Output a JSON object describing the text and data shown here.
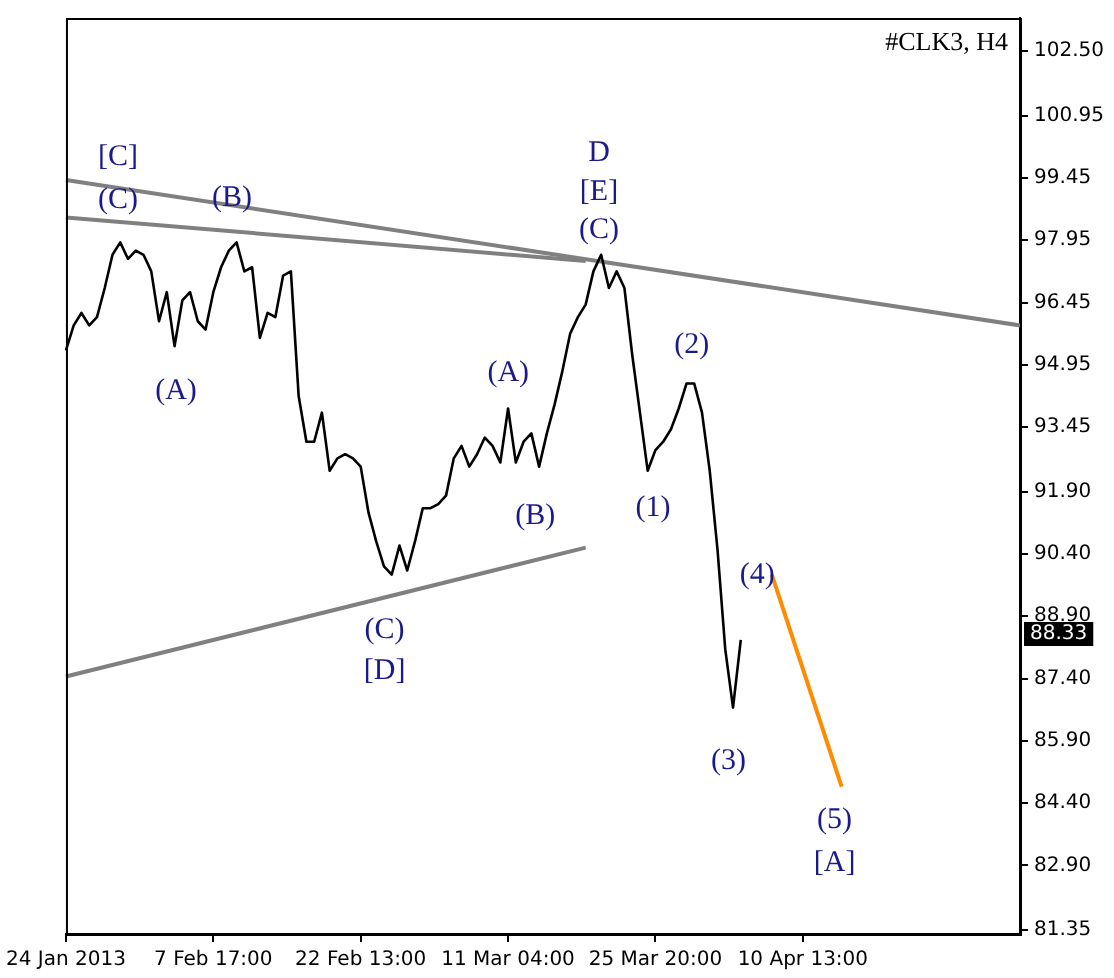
{
  "chart_data": {
    "type": "line",
    "title": "#CLK3, H4",
    "categories": [
      "24 Jan 2013",
      null,
      null,
      null,
      null,
      null,
      null,
      null,
      null,
      null,
      null,
      null,
      null,
      null,
      null,
      null,
      null,
      null,
      null,
      "7 Feb 17:00",
      null,
      null,
      null,
      null,
      null,
      null,
      null,
      null,
      null,
      null,
      null,
      null,
      null,
      null,
      null,
      null,
      null,
      null,
      "22 Feb 13:00",
      null,
      null,
      null,
      null,
      null,
      null,
      null,
      null,
      null,
      null,
      null,
      null,
      null,
      null,
      null,
      null,
      null,
      null,
      "11 Mar 04:00",
      null,
      null,
      null,
      null,
      null,
      null,
      null,
      null,
      null,
      null,
      null,
      null,
      null,
      null,
      null,
      null,
      null,
      null,
      "25 Mar 20:00",
      null,
      null,
      null,
      null,
      null,
      null,
      null,
      null,
      null,
      null,
      null,
      null,
      null,
      null,
      null,
      null,
      null,
      null,
      "10 Apr 13:00",
      null,
      null,
      null,
      null,
      null,
      null,
      null,
      null,
      null,
      null,
      null,
      null,
      null,
      null,
      null,
      null,
      null,
      null,
      null,
      null,
      null,
      null,
      null,
      null,
      null,
      null,
      null,
      null
    ],
    "series": [
      {
        "color": "#000000",
        "values": [
          95.3,
          95.9,
          96.2,
          95.9,
          96.1,
          96.8,
          97.6,
          97.9,
          97.5,
          97.7,
          97.6,
          97.2,
          96.0,
          96.7,
          95.4,
          96.5,
          96.7,
          96.0,
          95.8,
          96.7,
          97.3,
          97.7,
          97.9,
          97.2,
          97.3,
          95.6,
          96.2,
          96.1,
          97.1,
          97.2,
          94.2,
          93.1,
          93.1,
          93.8,
          92.4,
          92.7,
          92.8,
          92.7,
          92.5,
          91.4,
          90.7,
          90.1,
          89.9,
          90.6,
          90.0,
          90.7,
          91.5,
          91.5,
          91.6,
          91.8,
          92.7,
          93.0,
          92.5,
          92.8,
          93.2,
          93.0,
          92.6,
          93.9,
          92.6,
          93.1,
          93.3,
          92.5,
          93.3,
          94.0,
          94.8,
          95.7,
          96.1,
          96.4,
          97.2,
          97.6,
          96.8,
          97.2,
          96.8,
          95.2,
          93.8,
          92.4,
          92.9,
          93.1,
          93.4,
          93.9,
          94.5,
          94.5,
          93.8,
          92.4,
          90.5,
          88.1,
          86.7,
          88.33,
          null,
          null,
          null,
          null,
          null,
          null,
          null,
          null,
          null,
          null,
          null,
          null,
          null,
          null,
          null,
          null,
          null,
          null,
          null,
          null,
          null,
          null,
          null,
          null,
          null,
          null,
          null,
          null,
          null,
          null,
          null,
          null,
          null,
          null,
          null,
          null
        ]
      },
      {
        "color": "#808080",
        "values": [
          99.4,
          null,
          null,
          null,
          null,
          null,
          null,
          null,
          null,
          null,
          null,
          null,
          null,
          null,
          null,
          null,
          null,
          null,
          null,
          null,
          null,
          null,
          null,
          null,
          null,
          null,
          null,
          null,
          null,
          null,
          null,
          null,
          null,
          null,
          null,
          null,
          null,
          null,
          null,
          null,
          null,
          null,
          null,
          null,
          null,
          null,
          null,
          null,
          null,
          null,
          null,
          null,
          null,
          null,
          null,
          null,
          null,
          null,
          null,
          null,
          null,
          null,
          null,
          null,
          null,
          null,
          null,
          null,
          null,
          null,
          null,
          null,
          null,
          null,
          null,
          null,
          null,
          null,
          null,
          null,
          null,
          null,
          null,
          null,
          null,
          null,
          null,
          null,
          null,
          null,
          null,
          null,
          null,
          null,
          null,
          null,
          null,
          null,
          null,
          null,
          null,
          null,
          null,
          null,
          null,
          null,
          null,
          null,
          null,
          null,
          null,
          null,
          null,
          null,
          null,
          null,
          null,
          null,
          null,
          null,
          null,
          null,
          null,
          95.9
        ]
      },
      {
        "color": "#808080",
        "values": [
          98.5,
          null,
          null,
          null,
          null,
          null,
          null,
          null,
          null,
          null,
          null,
          null,
          null,
          null,
          null,
          null,
          null,
          null,
          null,
          null,
          null,
          null,
          null,
          null,
          null,
          null,
          null,
          null,
          null,
          null,
          null,
          null,
          null,
          null,
          null,
          null,
          null,
          null,
          null,
          null,
          null,
          null,
          null,
          null,
          null,
          null,
          null,
          null,
          null,
          null,
          null,
          null,
          null,
          null,
          null,
          null,
          null,
          null,
          null,
          null,
          null,
          null,
          null,
          null,
          null,
          null,
          null,
          97.45,
          null,
          null,
          null,
          null,
          null,
          null,
          null,
          null,
          null,
          null,
          null,
          null,
          null,
          null,
          null,
          null,
          null,
          null,
          null,
          null,
          null,
          null,
          null,
          null,
          null,
          null,
          null,
          null,
          null,
          null,
          null,
          null,
          null,
          null,
          null,
          null,
          null,
          null,
          null,
          null,
          null,
          null,
          null,
          null,
          null,
          null,
          null,
          null,
          null,
          null,
          null,
          null,
          null,
          null,
          null,
          null
        ]
      },
      {
        "color": "#808080",
        "values": [
          87.45,
          null,
          null,
          null,
          null,
          null,
          null,
          null,
          null,
          null,
          null,
          null,
          null,
          null,
          null,
          null,
          null,
          null,
          null,
          null,
          null,
          null,
          null,
          null,
          null,
          null,
          null,
          null,
          null,
          null,
          null,
          null,
          null,
          null,
          null,
          null,
          null,
          null,
          null,
          null,
          null,
          null,
          null,
          null,
          null,
          null,
          null,
          null,
          null,
          null,
          null,
          null,
          null,
          null,
          null,
          null,
          null,
          null,
          null,
          null,
          null,
          null,
          null,
          null,
          null,
          null,
          null,
          90.55,
          null,
          null,
          null,
          null,
          null,
          null,
          null,
          null,
          null,
          null,
          null,
          null,
          null,
          null,
          null,
          null,
          null,
          null,
          null,
          null,
          null,
          null,
          null,
          null,
          null,
          null,
          null,
          null,
          null,
          null,
          null,
          null,
          null,
          null,
          null,
          null,
          null,
          null,
          null,
          null,
          null,
          null,
          null,
          null,
          null,
          null,
          null,
          null,
          null,
          null,
          null,
          null,
          null,
          null,
          null,
          null
        ]
      },
      {
        "color": "#ff8c00",
        "values": [
          null,
          null,
          null,
          null,
          null,
          null,
          null,
          null,
          null,
          null,
          null,
          null,
          null,
          null,
          null,
          null,
          null,
          null,
          null,
          null,
          null,
          null,
          null,
          null,
          null,
          null,
          null,
          null,
          null,
          null,
          null,
          null,
          null,
          null,
          null,
          null,
          null,
          null,
          null,
          null,
          null,
          null,
          null,
          null,
          null,
          null,
          null,
          null,
          null,
          null,
          null,
          null,
          null,
          null,
          null,
          null,
          null,
          null,
          null,
          null,
          null,
          null,
          null,
          null,
          null,
          null,
          null,
          null,
          null,
          null,
          null,
          null,
          null,
          null,
          null,
          null,
          null,
          null,
          null,
          null,
          null,
          null,
          null,
          null,
          null,
          null,
          null,
          null,
          null,
          null,
          null,
          89.9,
          null,
          null,
          null,
          null,
          null,
          null,
          null,
          null,
          84.8,
          null,
          null,
          null,
          null,
          null,
          null,
          null,
          null,
          null,
          null,
          null,
          null,
          null,
          null,
          null,
          null,
          null,
          null,
          null,
          null,
          null,
          null,
          null
        ]
      }
    ],
    "ylim": [
      81.25,
      103.3
    ],
    "yticks": [
      {
        "value": 81.35,
        "label": "81.35"
      },
      {
        "value": 82.9,
        "label": "82.90"
      },
      {
        "value": 84.4,
        "label": "84.40"
      },
      {
        "value": 85.9,
        "label": "85.90"
      },
      {
        "value": 87.4,
        "label": "87.40"
      },
      {
        "value": 88.9,
        "label": "88.90"
      },
      {
        "value": 90.4,
        "label": "90.40"
      },
      {
        "value": 91.9,
        "label": "91.90"
      },
      {
        "value": 93.45,
        "label": "93.45"
      },
      {
        "value": 94.95,
        "label": "94.95"
      },
      {
        "value": 96.45,
        "label": "96.45"
      },
      {
        "value": 97.95,
        "label": "97.95"
      },
      {
        "value": 99.45,
        "label": "99.45"
      },
      {
        "value": 100.95,
        "label": "100.95"
      },
      {
        "value": 102.5,
        "label": "102.50"
      }
    ],
    "grid": false,
    "legend": false,
    "marker": "none",
    "line_style": "solid",
    "annotations": [
      "[C]",
      "(C)",
      "(B)",
      "(A)",
      "(C)",
      "[D]",
      "(A)",
      "(B)",
      "D",
      "[E]",
      "(C)",
      "(1)",
      "(2)",
      "(3)",
      "(4)",
      "(5)",
      "[A]",
      "88.33"
    ]
  }
}
